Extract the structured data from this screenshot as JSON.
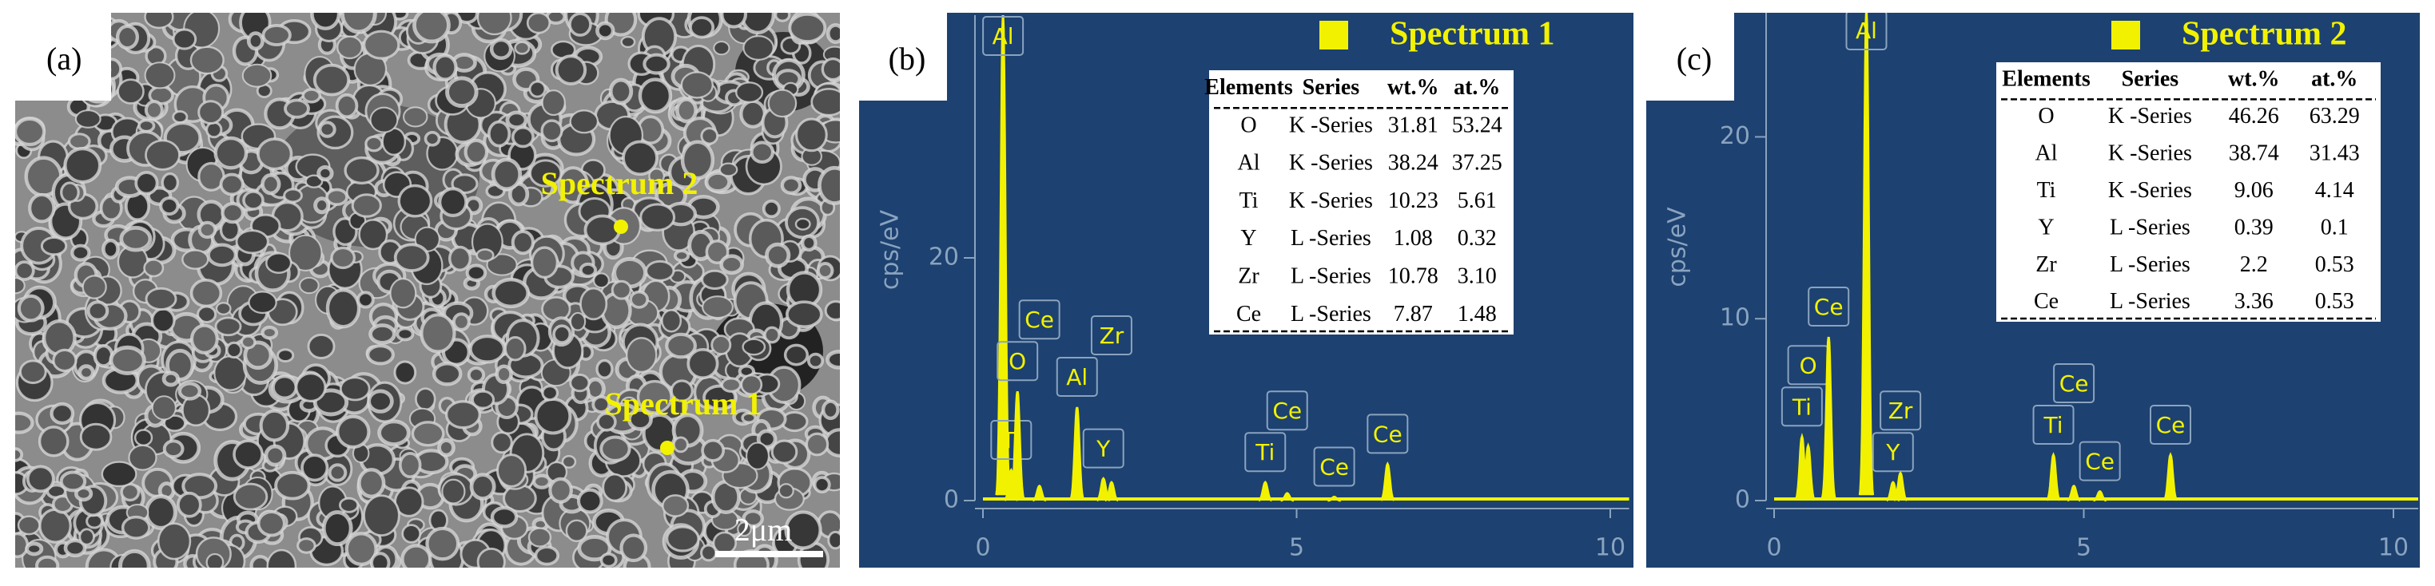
{
  "panel_a": {
    "label": "(a)",
    "points": [
      {
        "label": "Spectrum 2"
      },
      {
        "label": "Spectrum 1"
      }
    ],
    "scale_bar": "2μm"
  },
  "spectra": [
    {
      "type": "spectrum",
      "label": "(b)",
      "legend": "Spectrum 1",
      "y_axis_label": "cps/eV",
      "color": "#f2f200",
      "xlim": [
        0,
        10.3
      ],
      "xticks": [
        0,
        5,
        10
      ],
      "ylim": [
        0,
        40
      ],
      "yticks": [
        0,
        20
      ],
      "peaks": [
        {
          "label": "Al",
          "x": 0.32,
          "height": 40
        },
        {
          "label": "Ti",
          "x": 0.45,
          "height": 2.5
        },
        {
          "label": "O",
          "x": 0.55,
          "height": 9
        },
        {
          "label": "Ce",
          "x": 0.9,
          "height": 1.2
        },
        {
          "label": "Al",
          "x": 1.5,
          "height": 7.7
        },
        {
          "label": "Y",
          "x": 1.92,
          "height": 1.8
        },
        {
          "label": "Zr",
          "x": 2.05,
          "height": 1.5
        },
        {
          "label": "Ti",
          "x": 4.5,
          "height": 1.5
        },
        {
          "label": "Ce",
          "x": 4.85,
          "height": 0.6
        },
        {
          "label": "Ce",
          "x": 5.6,
          "height": 0.3
        },
        {
          "label": "Ce",
          "x": 6.45,
          "height": 3
        }
      ],
      "table": {
        "header": [
          "Elements",
          "Series",
          "wt.%",
          "at.%"
        ],
        "rows": [
          [
            "O",
            "K -Series",
            "31.81",
            "53.24"
          ],
          [
            "Al",
            "K -Series",
            "38.24",
            "37.25"
          ],
          [
            "Ti",
            "K -Series",
            "10.23",
            "5.61"
          ],
          [
            "Y",
            "L -Series",
            "1.08",
            "0.32"
          ],
          [
            "Zr",
            "L -Series",
            "10.78",
            "3.10"
          ],
          [
            "Ce",
            "L -Series",
            "7.87",
            "1.48"
          ]
        ]
      }
    },
    {
      "type": "spectrum",
      "label": "(c)",
      "legend": "Spectrum 2",
      "y_axis_label": "cps/eV",
      "color": "#f2f200",
      "xlim": [
        0,
        10.4
      ],
      "xticks": [
        0,
        5,
        10
      ],
      "ylim": [
        0,
        27
      ],
      "yticks": [
        0,
        10,
        20
      ],
      "peaks": [
        {
          "label": "Ti",
          "x": 0.45,
          "height": 3.5
        },
        {
          "label": "O",
          "x": 0.55,
          "height": 3
        },
        {
          "label": "Ce",
          "x": 0.88,
          "height": 9
        },
        {
          "label": "Al",
          "x": 1.49,
          "height": 27
        },
        {
          "label": "Y",
          "x": 1.92,
          "height": 1
        },
        {
          "label": "Zr",
          "x": 2.04,
          "height": 1.5
        },
        {
          "label": "Ti",
          "x": 4.51,
          "height": 2.5
        },
        {
          "label": "Ce",
          "x": 4.84,
          "height": 0.8
        },
        {
          "label": "Ce",
          "x": 5.26,
          "height": 0.5
        },
        {
          "label": "Ce",
          "x": 6.4,
          "height": 2.5
        }
      ],
      "table": {
        "header": [
          "Elements",
          "Series",
          "wt.%",
          "at.%"
        ],
        "rows": [
          [
            "O",
            "K -Series",
            "46.26",
            "63.29"
          ],
          [
            "Al",
            "K -Series",
            "38.74",
            "31.43"
          ],
          [
            "Ti",
            "K -Series",
            "9.06",
            "4.14"
          ],
          [
            "Y",
            "L -Series",
            "0.39",
            "0.1"
          ],
          [
            "Zr",
            "L -Series",
            "2.2",
            "0.53"
          ],
          [
            "Ce",
            "L -Series",
            "3.36",
            "0.53"
          ]
        ]
      }
    }
  ]
}
